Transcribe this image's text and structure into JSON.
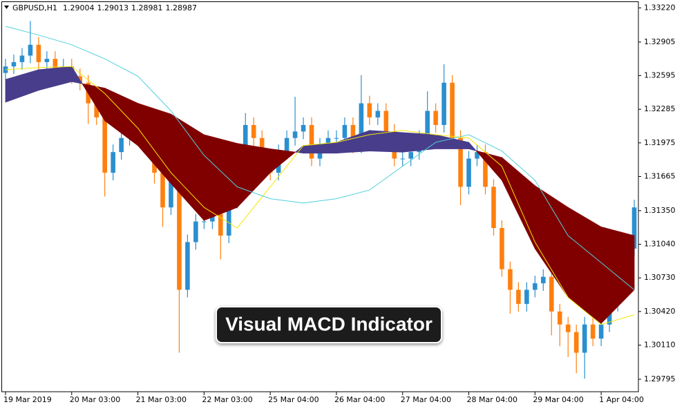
{
  "chart_data": {
    "type": "candlestick",
    "title": "GBPUSD,H1",
    "header_values": [
      1.29004,
      1.29013,
      1.28981,
      1.28987
    ],
    "annotation": "Visual MACD Indicator",
    "open": [
      1.3262,
      1.3268,
      1.3272,
      1.3278,
      1.3288,
      1.3272,
      1.3275,
      1.3265,
      1.3268,
      1.3259,
      1.3253,
      1.3234,
      1.3221,
      1.317,
      1.3189,
      1.3202,
      1.3208,
      1.3211,
      1.3202,
      1.317,
      1.3138,
      1.3163,
      1.3062,
      1.3106,
      1.3125,
      1.3125,
      1.3132,
      1.3112,
      1.3144,
      1.3183,
      1.3214,
      1.3202,
      1.3183,
      1.317,
      1.3189,
      1.3202,
      1.3208,
      1.3214,
      1.3183,
      1.3195,
      1.3202,
      1.3202,
      1.3214,
      1.3195,
      1.3234,
      1.3221,
      1.3227,
      1.3208,
      1.3183,
      1.3183,
      1.3189,
      1.3202,
      1.3227,
      1.3214,
      1.3253,
      1.3202,
      1.3157,
      1.3183,
      1.3189,
      1.3157,
      1.3119,
      1.3081,
      1.3062,
      1.3049,
      1.3062,
      1.3068,
      1.3074,
      1.3042,
      1.303,
      1.3023,
      1.3004,
      1.303,
      1.3017,
      1.303,
      1.3049,
      1.3068,
      1.31
    ],
    "high": [
      1.3275,
      1.3279,
      1.3285,
      1.331,
      1.3295,
      1.3282,
      1.3282,
      1.3275,
      1.3275,
      1.3266,
      1.326,
      1.3241,
      1.3228,
      1.3196,
      1.3209,
      1.3215,
      1.3218,
      1.3218,
      1.3209,
      1.3177,
      1.317,
      1.317,
      1.3113,
      1.3132,
      1.3132,
      1.3139,
      1.3139,
      1.3151,
      1.319,
      1.3225,
      1.3221,
      1.3209,
      1.319,
      1.3196,
      1.3209,
      1.324,
      1.3221,
      1.3221,
      1.3202,
      1.3209,
      1.3209,
      1.3221,
      1.3221,
      1.326,
      1.3241,
      1.3234,
      1.3234,
      1.3215,
      1.319,
      1.3196,
      1.3209,
      1.3245,
      1.3234,
      1.327,
      1.326,
      1.3209,
      1.319,
      1.3196,
      1.3196,
      1.3164,
      1.3126,
      1.3088,
      1.3069,
      1.3069,
      1.3075,
      1.3081,
      1.3081,
      1.3049,
      1.3037,
      1.303,
      1.3037,
      1.3037,
      1.3037,
      1.3056,
      1.3075,
      1.3107,
      1.3145
    ],
    "low": [
      1.3255,
      1.3261,
      1.3265,
      1.3271,
      1.3265,
      1.3265,
      1.3258,
      1.3258,
      1.3252,
      1.3246,
      1.3215,
      1.3214,
      1.3148,
      1.3163,
      1.3182,
      1.3195,
      1.3201,
      1.3195,
      1.316,
      1.312,
      1.3131,
      1.3004,
      1.3055,
      1.3099,
      1.3118,
      1.3118,
      1.309,
      1.3105,
      1.3137,
      1.3176,
      1.3195,
      1.3176,
      1.3163,
      1.3163,
      1.3182,
      1.3195,
      1.3201,
      1.3176,
      1.3176,
      1.3188,
      1.3195,
      1.3195,
      1.3188,
      1.3188,
      1.3214,
      1.3214,
      1.3201,
      1.3176,
      1.3176,
      1.3176,
      1.3182,
      1.3195,
      1.3207,
      1.3207,
      1.3195,
      1.314,
      1.315,
      1.3176,
      1.315,
      1.3112,
      1.3074,
      1.304,
      1.3042,
      1.3042,
      1.3055,
      1.3061,
      1.302,
      1.301,
      1.3,
      1.2985,
      1.298,
      1.301,
      1.301,
      1.3023,
      1.3042,
      1.3061,
      1.3093
    ],
    "close": [
      1.3268,
      1.3272,
      1.3278,
      1.3288,
      1.3272,
      1.3275,
      1.3265,
      1.3268,
      1.3259,
      1.3253,
      1.3234,
      1.3221,
      1.317,
      1.3189,
      1.3202,
      1.3208,
      1.3211,
      1.3202,
      1.317,
      1.3138,
      1.3163,
      1.3062,
      1.3106,
      1.3125,
      1.3125,
      1.3132,
      1.3112,
      1.3144,
      1.3183,
      1.3214,
      1.3202,
      1.3183,
      1.317,
      1.3189,
      1.3202,
      1.3208,
      1.3214,
      1.3183,
      1.3195,
      1.3202,
      1.3202,
      1.3214,
      1.3195,
      1.3234,
      1.3221,
      1.3227,
      1.3208,
      1.3183,
      1.3183,
      1.3189,
      1.3202,
      1.3227,
      1.3214,
      1.3253,
      1.3202,
      1.3157,
      1.3183,
      1.3189,
      1.3157,
      1.3119,
      1.3081,
      1.3062,
      1.3049,
      1.3062,
      1.3068,
      1.3074,
      1.3042,
      1.303,
      1.3023,
      1.3004,
      1.303,
      1.3017,
      1.303,
      1.3049,
      1.3068,
      1.31,
      1.3138
    ],
    "up_color": "#2a8fcf",
    "down_color": "#ff7f0e",
    "xlim": [
      -0.5,
      76.5
    ],
    "xticks": [
      {
        "value": 0,
        "label": "19 Mar 2019"
      },
      {
        "value": 8,
        "label": "20 Mar 03:00"
      },
      {
        "value": 16,
        "label": "21 Mar 03:00"
      },
      {
        "value": 24,
        "label": "22 Mar 03:00"
      },
      {
        "value": 32,
        "label": "25 Mar 04:00"
      },
      {
        "value": 40,
        "label": "26 Mar 04:00"
      },
      {
        "value": 48,
        "label": "27 Mar 04:00"
      },
      {
        "value": 56,
        "label": "28 Mar 04:00"
      },
      {
        "value": 64,
        "label": "29 Mar 04:00"
      },
      {
        "value": 72,
        "label": "1 Apr 04:00"
      }
    ],
    "ylim": [
      1.2968,
      1.3328
    ],
    "yticks": [
      {
        "value": 1.3322,
        "label": "1.33220"
      },
      1.32905,
      1.32595,
      1.32285,
      1.31975,
      1.31665,
      {
        "value": 1.3135,
        "label": "1.31350"
      },
      {
        "value": 1.3104,
        "label": "1.31040"
      },
      {
        "value": 1.3073,
        "label": "1.30730"
      },
      {
        "value": 1.3042,
        "label": "1.30420"
      },
      {
        "value": 1.3011,
        "label": "1.30110"
      },
      1.29795
    ],
    "overlays": {
      "x": [
        0,
        4,
        8,
        12,
        16,
        20,
        24,
        28,
        32,
        36,
        40,
        44,
        48,
        52,
        56,
        60,
        64,
        68,
        72,
        76
      ],
      "band": {
        "fast": [
          1.3256,
          1.3265,
          1.3268,
          1.3218,
          1.3195,
          1.316,
          1.3126,
          1.3138,
          1.317,
          1.3195,
          1.3198,
          1.3209,
          1.3207,
          1.3205,
          1.3198,
          1.3163,
          1.31,
          1.3055,
          1.3031,
          1.3062
        ],
        "slow": [
          1.3235,
          1.3246,
          1.3254,
          1.3248,
          1.3234,
          1.3224,
          1.3205,
          1.3197,
          1.3192,
          1.3188,
          1.3188,
          1.319,
          1.3189,
          1.3192,
          1.3192,
          1.3184,
          1.3158,
          1.3138,
          1.312,
          1.3112
        ],
        "up_color": "#483d8b",
        "down_color": "#800000"
      },
      "lines": [
        {
          "values": [
            1.3265,
            1.3267,
            1.3268,
            1.3243,
            1.3211,
            1.317,
            1.3138,
            1.3119,
            1.3157,
            1.3195,
            1.3198,
            1.3205,
            1.3209,
            1.3205,
            1.3202,
            1.3176,
            1.3106,
            1.3055,
            1.303,
            1.3039
          ],
          "color": "#f5e600"
        },
        {
          "values": [
            1.3305,
            1.3297,
            1.3288,
            1.3275,
            1.3259,
            1.3227,
            1.3186,
            1.3157,
            1.3146,
            1.3142,
            1.3146,
            1.3154,
            1.3176,
            1.3198,
            1.3205,
            1.319,
            1.3163,
            1.3112,
            1.3087,
            1.3062
          ],
          "color": "#4fcfdc"
        }
      ]
    }
  }
}
